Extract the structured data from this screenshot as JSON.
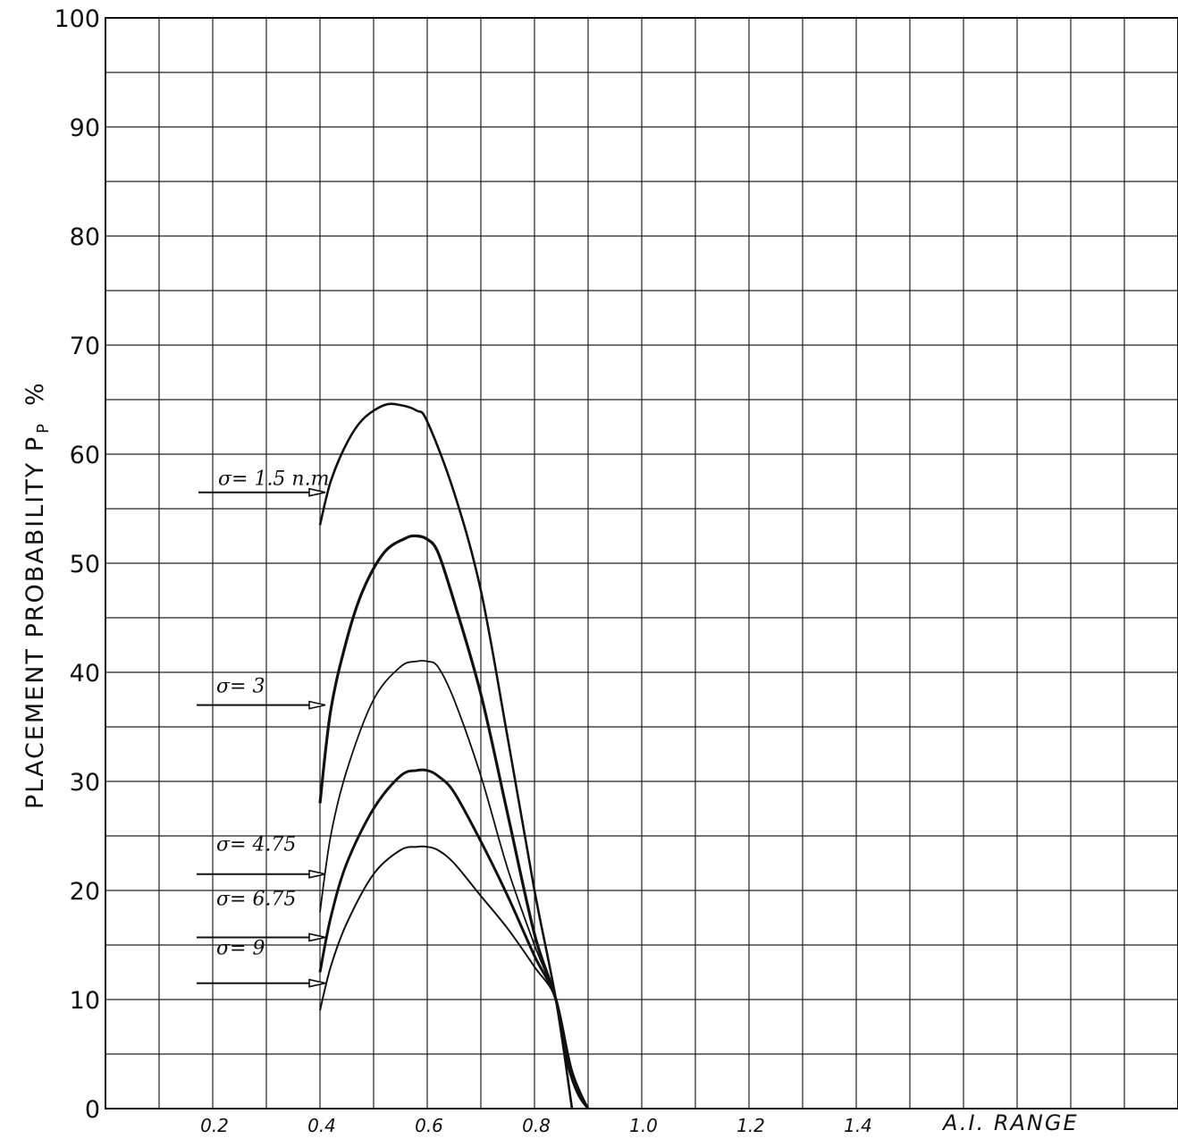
{
  "chart_data": {
    "type": "line",
    "title": "",
    "xlabel": "A.I. RANGE",
    "ylabel": "PLACEMENT   PROBABILITY   P",
    "ylabel_sub": "P",
    "ylabel_unit": "%",
    "xlim": [
      0,
      2.0
    ],
    "ylim": [
      0,
      100
    ],
    "grid": true,
    "x_ticks": [
      {
        "value": 0.2,
        "label": "0.2"
      },
      {
        "value": 0.4,
        "label": "0.4"
      },
      {
        "value": 0.6,
        "label": "0.6"
      },
      {
        "value": 0.8,
        "label": "0.8"
      },
      {
        "value": 1.0,
        "label": "1.0"
      },
      {
        "value": 1.2,
        "label": "1.2"
      },
      {
        "value": 1.4,
        "label": "1.4"
      }
    ],
    "y_ticks": [
      {
        "value": 0,
        "label": "0"
      },
      {
        "value": 10,
        "label": "10"
      },
      {
        "value": 20,
        "label": "20"
      },
      {
        "value": 30,
        "label": "30"
      },
      {
        "value": 40,
        "label": "40"
      },
      {
        "value": 50,
        "label": "50"
      },
      {
        "value": 60,
        "label": "60"
      },
      {
        "value": 70,
        "label": "70"
      },
      {
        "value": 80,
        "label": "80"
      },
      {
        "value": 90,
        "label": "90"
      },
      {
        "value": 100,
        "label": "100"
      }
    ],
    "series": [
      {
        "label": "σ= 1.5 n.m",
        "label_at": [
          0.2,
          56.5
        ],
        "arrow_to": [
          0.42,
          56.5
        ],
        "x": [
          0.4,
          0.42,
          0.45,
          0.48,
          0.52,
          0.55,
          0.58,
          0.6,
          0.65,
          0.7,
          0.75,
          0.8,
          0.84,
          0.87
        ],
        "y": [
          53.5,
          57.5,
          61,
          63.2,
          64.5,
          64.5,
          64,
          63,
          56.5,
          47.5,
          34,
          20,
          10,
          0
        ]
      },
      {
        "label": "σ= 3",
        "label_at": [
          0.2,
          37.5
        ],
        "arrow_to": [
          0.42,
          37
        ],
        "x": [
          0.4,
          0.42,
          0.45,
          0.48,
          0.52,
          0.56,
          0.58,
          0.6,
          0.62,
          0.65,
          0.7,
          0.75,
          0.8,
          0.84,
          0.86,
          0.88,
          0.9
        ],
        "y": [
          28,
          36.5,
          43,
          47.5,
          51,
          52.3,
          52.5,
          52.2,
          51,
          46.5,
          38,
          27,
          16,
          10,
          4.5,
          1.5,
          0
        ]
      },
      {
        "label": "σ= 4.75",
        "label_at": [
          0.2,
          23
        ],
        "arrow_to": [
          0.42,
          21.5
        ],
        "x": [
          0.4,
          0.42,
          0.45,
          0.5,
          0.55,
          0.58,
          0.6,
          0.62,
          0.65,
          0.7,
          0.75,
          0.8,
          0.84,
          0.87,
          0.9
        ],
        "y": [
          18,
          25,
          31,
          37.5,
          40.5,
          41,
          41,
          40.5,
          37.5,
          30.5,
          22,
          15,
          10,
          3.5,
          0
        ]
      },
      {
        "label": "σ= 6.75",
        "label_at": [
          0.2,
          18
        ],
        "arrow_to": [
          0.42,
          15.7
        ],
        "x": [
          0.4,
          0.42,
          0.45,
          0.5,
          0.55,
          0.58,
          0.6,
          0.62,
          0.65,
          0.7,
          0.75,
          0.8,
          0.84,
          0.87,
          0.9
        ],
        "y": [
          12.5,
          17.5,
          22.5,
          27.5,
          30.5,
          31,
          31,
          30.5,
          29,
          24.5,
          19.5,
          14,
          10,
          3,
          0
        ]
      },
      {
        "label": "σ= 9",
        "label_at": [
          0.2,
          13.5
        ],
        "arrow_to": [
          0.42,
          11.5
        ],
        "x": [
          0.4,
          0.42,
          0.45,
          0.5,
          0.55,
          0.58,
          0.6,
          0.62,
          0.65,
          0.7,
          0.75,
          0.8,
          0.84,
          0.87,
          0.9
        ],
        "y": [
          9,
          13,
          17,
          21.5,
          23.7,
          24,
          24,
          23.7,
          22.5,
          19.5,
          16.5,
          13,
          10,
          3.5,
          0
        ]
      }
    ]
  }
}
